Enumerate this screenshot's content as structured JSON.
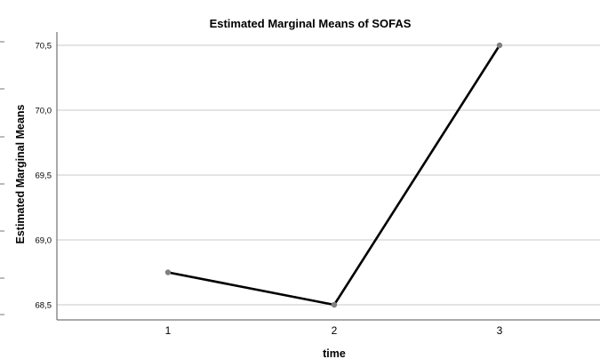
{
  "chart_data": {
    "type": "line",
    "title": "Estimated Marginal Means of SOFAS",
    "xlabel": "time",
    "ylabel": "Estimated Marginal Means",
    "categories": [
      "1",
      "2",
      "3"
    ],
    "series": [
      {
        "values": [
          68.75,
          68.5,
          70.5
        ]
      }
    ],
    "ylim": [
      68.45,
      70.6
    ],
    "y_ticks": [
      68.5,
      69.0,
      69.5,
      70.0,
      70.5
    ],
    "y_tick_labels": [
      "68,5",
      "69,0",
      "69,5",
      "70,0",
      "70,5"
    ],
    "grid": true,
    "legend": "none",
    "colors": {
      "line": "#000000",
      "marker": "#808080",
      "grid": "#c8c8c8"
    }
  }
}
